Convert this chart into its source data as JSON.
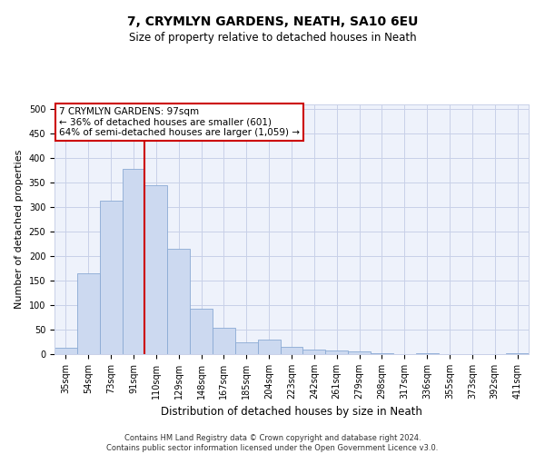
{
  "title": "7, CRYMLYN GARDENS, NEATH, SA10 6EU",
  "subtitle": "Size of property relative to detached houses in Neath",
  "xlabel": "Distribution of detached houses by size in Neath",
  "ylabel": "Number of detached properties",
  "categories": [
    "35sqm",
    "54sqm",
    "73sqm",
    "91sqm",
    "110sqm",
    "129sqm",
    "148sqm",
    "167sqm",
    "185sqm",
    "204sqm",
    "223sqm",
    "242sqm",
    "261sqm",
    "279sqm",
    "298sqm",
    "317sqm",
    "336sqm",
    "355sqm",
    "373sqm",
    "392sqm",
    "411sqm"
  ],
  "values": [
    13,
    165,
    313,
    378,
    345,
    215,
    93,
    54,
    24,
    29,
    14,
    10,
    8,
    5,
    2,
    0,
    2,
    0,
    0,
    0,
    2
  ],
  "bar_color": "#ccd9f0",
  "bar_edge_color": "#8aaad4",
  "vline_x_index": 3,
  "vline_color": "#cc0000",
  "annotation_line1": "7 CRYMLYN GARDENS: 97sqm",
  "annotation_line2": "← 36% of detached houses are smaller (601)",
  "annotation_line3": "64% of semi-detached houses are larger (1,059) →",
  "annotation_box_color": "#ffffff",
  "annotation_box_edge": "#cc0000",
  "ylim": [
    0,
    510
  ],
  "yticks": [
    0,
    50,
    100,
    150,
    200,
    250,
    300,
    350,
    400,
    450,
    500
  ],
  "background_color": "#eef2fb",
  "grid_color": "#c8d0e8",
  "title_fontsize": 10,
  "subtitle_fontsize": 8.5,
  "ylabel_fontsize": 8,
  "xlabel_fontsize": 8.5,
  "tick_fontsize": 7,
  "footer_line1": "Contains HM Land Registry data © Crown copyright and database right 2024.",
  "footer_line2": "Contains public sector information licensed under the Open Government Licence v3.0."
}
